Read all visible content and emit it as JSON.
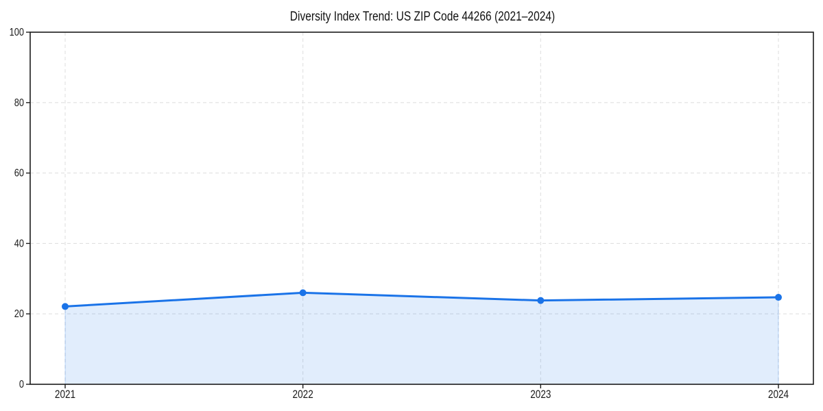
{
  "figure": {
    "background": "#ffffff"
  },
  "chart_data": {
    "type": "area",
    "title": "Diversity Index Trend: US ZIP Code 44266 (2021–2024)",
    "categories": [
      "2021",
      "2022",
      "2023",
      "2024"
    ],
    "series": [
      {
        "name": "Diversity Index",
        "values": [
          22.1,
          26.0,
          23.8,
          24.7
        ]
      }
    ],
    "xlabel": "",
    "ylabel": "",
    "ylim": [
      0,
      100
    ],
    "yticks": [
      0,
      20,
      40,
      60,
      80,
      100
    ],
    "grid": true,
    "grid_style": "dashed",
    "legend": false,
    "marker": "circle",
    "colors": {
      "line": "#1a73e8",
      "fill": "#1a73e8",
      "fill_opacity": 0.13,
      "grid": "#e0e0e0",
      "axis": "#1a1a1a",
      "text": "#1a1a1a",
      "background": "#ffffff"
    }
  }
}
